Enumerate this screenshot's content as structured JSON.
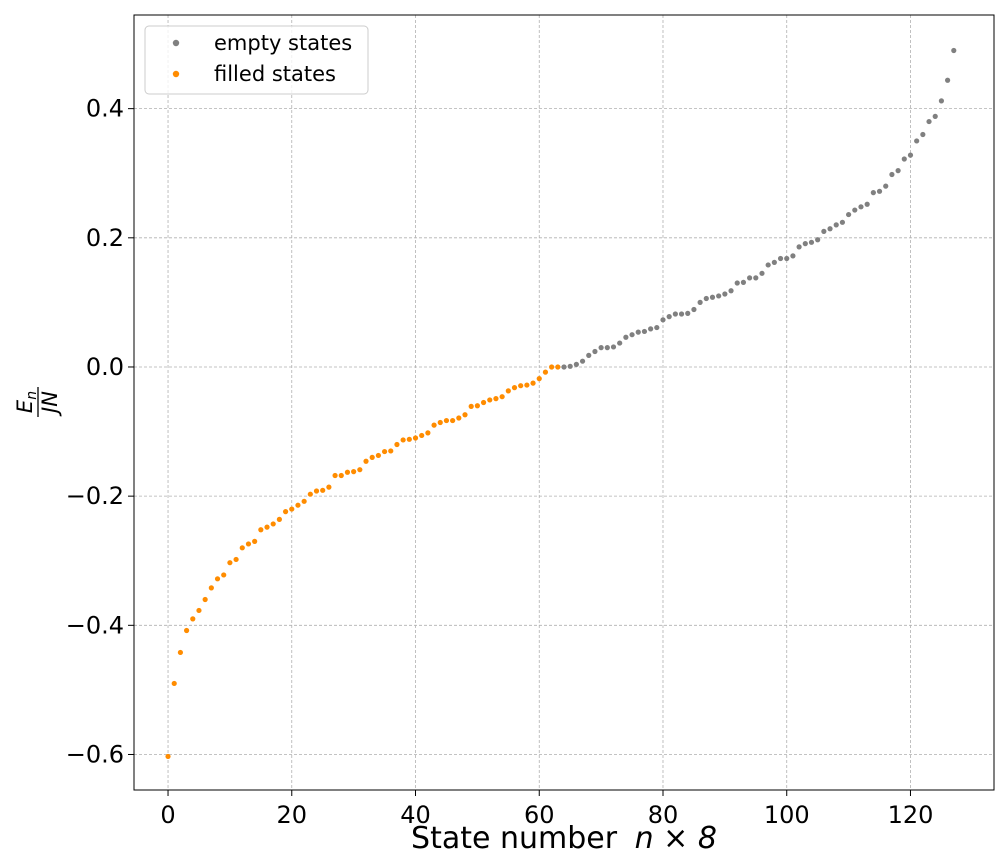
{
  "chart_data": {
    "type": "scatter",
    "xlabel_text": "State number",
    "xlabel_math": "n × 8",
    "ylabel_numerator": "E",
    "ylabel_numerator_sub": "n",
    "ylabel_denominator": "JN",
    "xlim": [
      -5.5,
      133.5
    ],
    "ylim": [
      -0.655,
      0.545
    ],
    "grid": true,
    "legend_position": "upper-left",
    "x_ticks": [
      0,
      20,
      40,
      60,
      80,
      100,
      120
    ],
    "x_tick_labels": [
      "0",
      "20",
      "40",
      "60",
      "80",
      "100",
      "120"
    ],
    "y_ticks": [
      -0.6,
      -0.4,
      -0.2,
      0.0,
      0.2,
      0.4
    ],
    "y_tick_labels": [
      "−0.6",
      "−0.4",
      "−0.2",
      "0.0",
      "0.2",
      "0.4"
    ],
    "series": [
      {
        "name": "empty states",
        "color": "#808080",
        "x_start": 64,
        "values": [
          0.0,
          0.001,
          0.004,
          0.009,
          0.018,
          0.024,
          0.03,
          0.03,
          0.031,
          0.037,
          0.046,
          0.05,
          0.054,
          0.055,
          0.059,
          0.061,
          0.073,
          0.078,
          0.082,
          0.082,
          0.083,
          0.089,
          0.1,
          0.106,
          0.108,
          0.11,
          0.113,
          0.118,
          0.13,
          0.131,
          0.138,
          0.138,
          0.145,
          0.158,
          0.162,
          0.168,
          0.168,
          0.172,
          0.186,
          0.191,
          0.193,
          0.197,
          0.21,
          0.214,
          0.22,
          0.224,
          0.236,
          0.243,
          0.248,
          0.252,
          0.27,
          0.272,
          0.28,
          0.298,
          0.304,
          0.322,
          0.328,
          0.35,
          0.36,
          0.38,
          0.388,
          0.412,
          0.444,
          0.49
        ]
      },
      {
        "name": "filled states",
        "color": "#ff8c00",
        "x_start": 0,
        "values": [
          -0.603,
          -0.49,
          -0.442,
          -0.408,
          -0.39,
          -0.377,
          -0.36,
          -0.342,
          -0.328,
          -0.322,
          -0.303,
          -0.298,
          -0.28,
          -0.274,
          -0.27,
          -0.252,
          -0.248,
          -0.243,
          -0.236,
          -0.224,
          -0.22,
          -0.214,
          -0.208,
          -0.197,
          -0.192,
          -0.191,
          -0.186,
          -0.168,
          -0.168,
          -0.163,
          -0.162,
          -0.159,
          -0.146,
          -0.14,
          -0.137,
          -0.131,
          -0.13,
          -0.12,
          -0.113,
          -0.112,
          -0.11,
          -0.106,
          -0.102,
          -0.09,
          -0.086,
          -0.083,
          -0.083,
          -0.079,
          -0.074,
          -0.061,
          -0.06,
          -0.055,
          -0.051,
          -0.049,
          -0.046,
          -0.037,
          -0.032,
          -0.029,
          -0.028,
          -0.025,
          -0.018,
          -0.008,
          0.0,
          0.0
        ]
      }
    ]
  }
}
